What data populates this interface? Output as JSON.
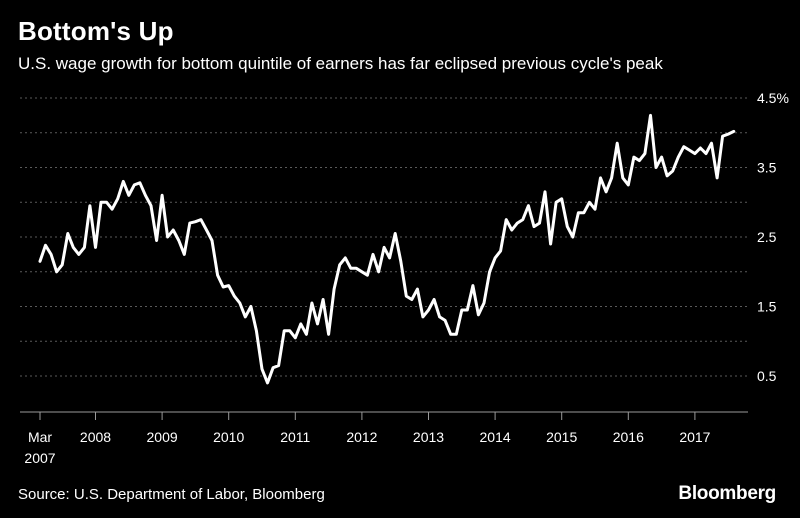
{
  "title": "Bottom's Up",
  "subtitle": "U.S. wage growth for bottom quintile of earners has far eclipsed previous cycle's peak",
  "source": "Source: U.S. Department of Labor, Bloomberg",
  "brand": "Bloomberg",
  "chart_data": {
    "type": "line",
    "title": "Bottom's Up",
    "subtitle": "U.S. wage growth for bottom quintile of earners has far eclipsed previous cycle's peak",
    "xlabel": "",
    "ylabel": "",
    "x_start": "2007-03",
    "x_range": [
      "2007-03",
      "2017-10"
    ],
    "ylim": [
      0,
      4.5
    ],
    "grid": "dotted horizontal",
    "legend": "none",
    "line_color": "#ffffff",
    "y_ticks": [
      {
        "value": 4.5,
        "label": "4.5%"
      },
      {
        "value": 3.5,
        "label": "3.5"
      },
      {
        "value": 2.5,
        "label": "2.5"
      },
      {
        "value": 1.5,
        "label": "1.5"
      },
      {
        "value": 0.5,
        "label": "0.5"
      }
    ],
    "x_ticks": [
      {
        "date": "2007-03",
        "label": "Mar",
        "label2": "2007"
      },
      {
        "date": "2008-01",
        "label": "2008"
      },
      {
        "date": "2009-01",
        "label": "2009"
      },
      {
        "date": "2010-01",
        "label": "2010"
      },
      {
        "date": "2011-01",
        "label": "2011"
      },
      {
        "date": "2012-01",
        "label": "2012"
      },
      {
        "date": "2013-01",
        "label": "2013"
      },
      {
        "date": "2014-01",
        "label": "2014"
      },
      {
        "date": "2015-01",
        "label": "2015"
      },
      {
        "date": "2016-01",
        "label": "2016"
      },
      {
        "date": "2017-01",
        "label": "2017"
      }
    ],
    "series": [
      {
        "points": [
          [
            "2007-03",
            2.15
          ],
          [
            "2007-04",
            2.38
          ],
          [
            "2007-05",
            2.25
          ],
          [
            "2007-06",
            2.0
          ],
          [
            "2007-07",
            2.1
          ],
          [
            "2007-08",
            2.55
          ],
          [
            "2007-09",
            2.35
          ],
          [
            "2007-10",
            2.25
          ],
          [
            "2007-11",
            2.35
          ],
          [
            "2007-12",
            2.95
          ],
          [
            "2008-01",
            2.35
          ],
          [
            "2008-02",
            3.0
          ],
          [
            "2008-03",
            3.0
          ],
          [
            "2008-04",
            2.9
          ],
          [
            "2008-05",
            3.05
          ],
          [
            "2008-06",
            3.3
          ],
          [
            "2008-07",
            3.1
          ],
          [
            "2008-08",
            3.25
          ],
          [
            "2008-09",
            3.28
          ],
          [
            "2008-10",
            3.1
          ],
          [
            "2008-11",
            2.95
          ],
          [
            "2008-12",
            2.45
          ],
          [
            "2009-01",
            3.1
          ],
          [
            "2009-02",
            2.5
          ],
          [
            "2009-03",
            2.6
          ],
          [
            "2009-04",
            2.45
          ],
          [
            "2009-05",
            2.25
          ],
          [
            "2009-06",
            2.7
          ],
          [
            "2009-07",
            2.72
          ],
          [
            "2009-08",
            2.75
          ],
          [
            "2009-09",
            2.6
          ],
          [
            "2009-10",
            2.45
          ],
          [
            "2009-11",
            1.95
          ],
          [
            "2009-12",
            1.78
          ],
          [
            "2010-01",
            1.8
          ],
          [
            "2010-02",
            1.65
          ],
          [
            "2010-03",
            1.55
          ],
          [
            "2010-04",
            1.35
          ],
          [
            "2010-05",
            1.5
          ],
          [
            "2010-06",
            1.15
          ],
          [
            "2010-07",
            0.6
          ],
          [
            "2010-08",
            0.4
          ],
          [
            "2010-09",
            0.62
          ],
          [
            "2010-10",
            0.65
          ],
          [
            "2010-11",
            1.15
          ],
          [
            "2010-12",
            1.15
          ],
          [
            "2011-01",
            1.05
          ],
          [
            "2011-02",
            1.25
          ],
          [
            "2011-03",
            1.1
          ],
          [
            "2011-04",
            1.55
          ],
          [
            "2011-05",
            1.25
          ],
          [
            "2011-06",
            1.6
          ],
          [
            "2011-07",
            1.1
          ],
          [
            "2011-08",
            1.75
          ],
          [
            "2011-09",
            2.1
          ],
          [
            "2011-10",
            2.2
          ],
          [
            "2011-11",
            2.05
          ],
          [
            "2011-12",
            2.05
          ],
          [
            "2012-01",
            2.0
          ],
          [
            "2012-02",
            1.95
          ],
          [
            "2012-03",
            2.25
          ],
          [
            "2012-04",
            2.0
          ],
          [
            "2012-05",
            2.35
          ],
          [
            "2012-06",
            2.2
          ],
          [
            "2012-07",
            2.55
          ],
          [
            "2012-08",
            2.15
          ],
          [
            "2012-09",
            1.65
          ],
          [
            "2012-10",
            1.6
          ],
          [
            "2012-11",
            1.75
          ],
          [
            "2012-12",
            1.35
          ],
          [
            "2013-01",
            1.45
          ],
          [
            "2013-02",
            1.6
          ],
          [
            "2013-03",
            1.35
          ],
          [
            "2013-04",
            1.3
          ],
          [
            "2013-05",
            1.1
          ],
          [
            "2013-06",
            1.1
          ],
          [
            "2013-07",
            1.45
          ],
          [
            "2013-08",
            1.45
          ],
          [
            "2013-09",
            1.8
          ],
          [
            "2013-10",
            1.38
          ],
          [
            "2013-11",
            1.55
          ],
          [
            "2013-12",
            2.0
          ],
          [
            "2014-01",
            2.2
          ],
          [
            "2014-02",
            2.3
          ],
          [
            "2014-03",
            2.75
          ],
          [
            "2014-04",
            2.6
          ],
          [
            "2014-05",
            2.7
          ],
          [
            "2014-06",
            2.75
          ],
          [
            "2014-07",
            2.95
          ],
          [
            "2014-08",
            2.65
          ],
          [
            "2014-09",
            2.7
          ],
          [
            "2014-10",
            3.15
          ],
          [
            "2014-11",
            2.4
          ],
          [
            "2014-12",
            3.0
          ],
          [
            "2015-01",
            3.05
          ],
          [
            "2015-02",
            2.65
          ],
          [
            "2015-03",
            2.5
          ],
          [
            "2015-04",
            2.85
          ],
          [
            "2015-05",
            2.85
          ],
          [
            "2015-06",
            3.0
          ],
          [
            "2015-07",
            2.9
          ],
          [
            "2015-08",
            3.35
          ],
          [
            "2015-09",
            3.15
          ],
          [
            "2015-10",
            3.35
          ],
          [
            "2015-11",
            3.85
          ],
          [
            "2015-12",
            3.35
          ],
          [
            "2016-01",
            3.25
          ],
          [
            "2016-02",
            3.65
          ],
          [
            "2016-03",
            3.6
          ],
          [
            "2016-04",
            3.7
          ],
          [
            "2016-05",
            4.25
          ],
          [
            "2016-06",
            3.5
          ],
          [
            "2016-07",
            3.65
          ],
          [
            "2016-08",
            3.38
          ],
          [
            "2016-09",
            3.45
          ],
          [
            "2016-10",
            3.65
          ],
          [
            "2016-11",
            3.8
          ],
          [
            "2016-12",
            3.75
          ],
          [
            "2017-01",
            3.7
          ],
          [
            "2017-02",
            3.78
          ],
          [
            "2017-03",
            3.7
          ],
          [
            "2017-04",
            3.85
          ],
          [
            "2017-05",
            3.35
          ],
          [
            "2017-06",
            3.95
          ],
          [
            "2017-07",
            3.98
          ],
          [
            "2017-08",
            4.02
          ]
        ]
      }
    ]
  }
}
